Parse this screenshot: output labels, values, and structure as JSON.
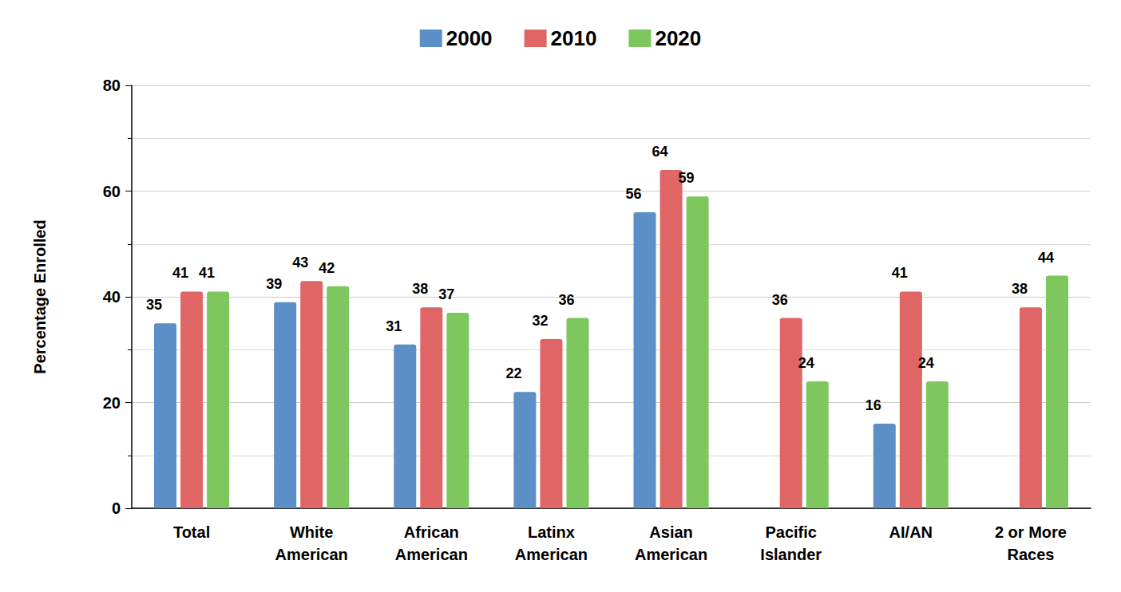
{
  "chart_data": {
    "type": "bar",
    "y_label": "Percentage Enrolled",
    "categories": [
      "Total",
      "White\nAmerican",
      "African\nAmerican",
      "Latinx\nAmerican",
      "Asian\nAmerican",
      "Pacific\nIslander",
      "AI/AN",
      "2 or More\nRaces"
    ],
    "series": [
      {
        "name": "2000",
        "color": "#5b8fc5",
        "values": [
          35,
          39,
          31,
          22,
          56,
          null,
          16,
          null
        ]
      },
      {
        "name": "2010",
        "color": "#e06666",
        "values": [
          41,
          43,
          38,
          32,
          64,
          36,
          41,
          38
        ]
      },
      {
        "name": "2020",
        "color": "#7dc75e",
        "values": [
          41,
          42,
          37,
          36,
          59,
          24,
          24,
          44
        ]
      }
    ],
    "ylim": [
      0,
      80
    ],
    "yticks": [
      0,
      20,
      40,
      60,
      80
    ],
    "grid": true,
    "legend": "top",
    "data_labels": true
  }
}
